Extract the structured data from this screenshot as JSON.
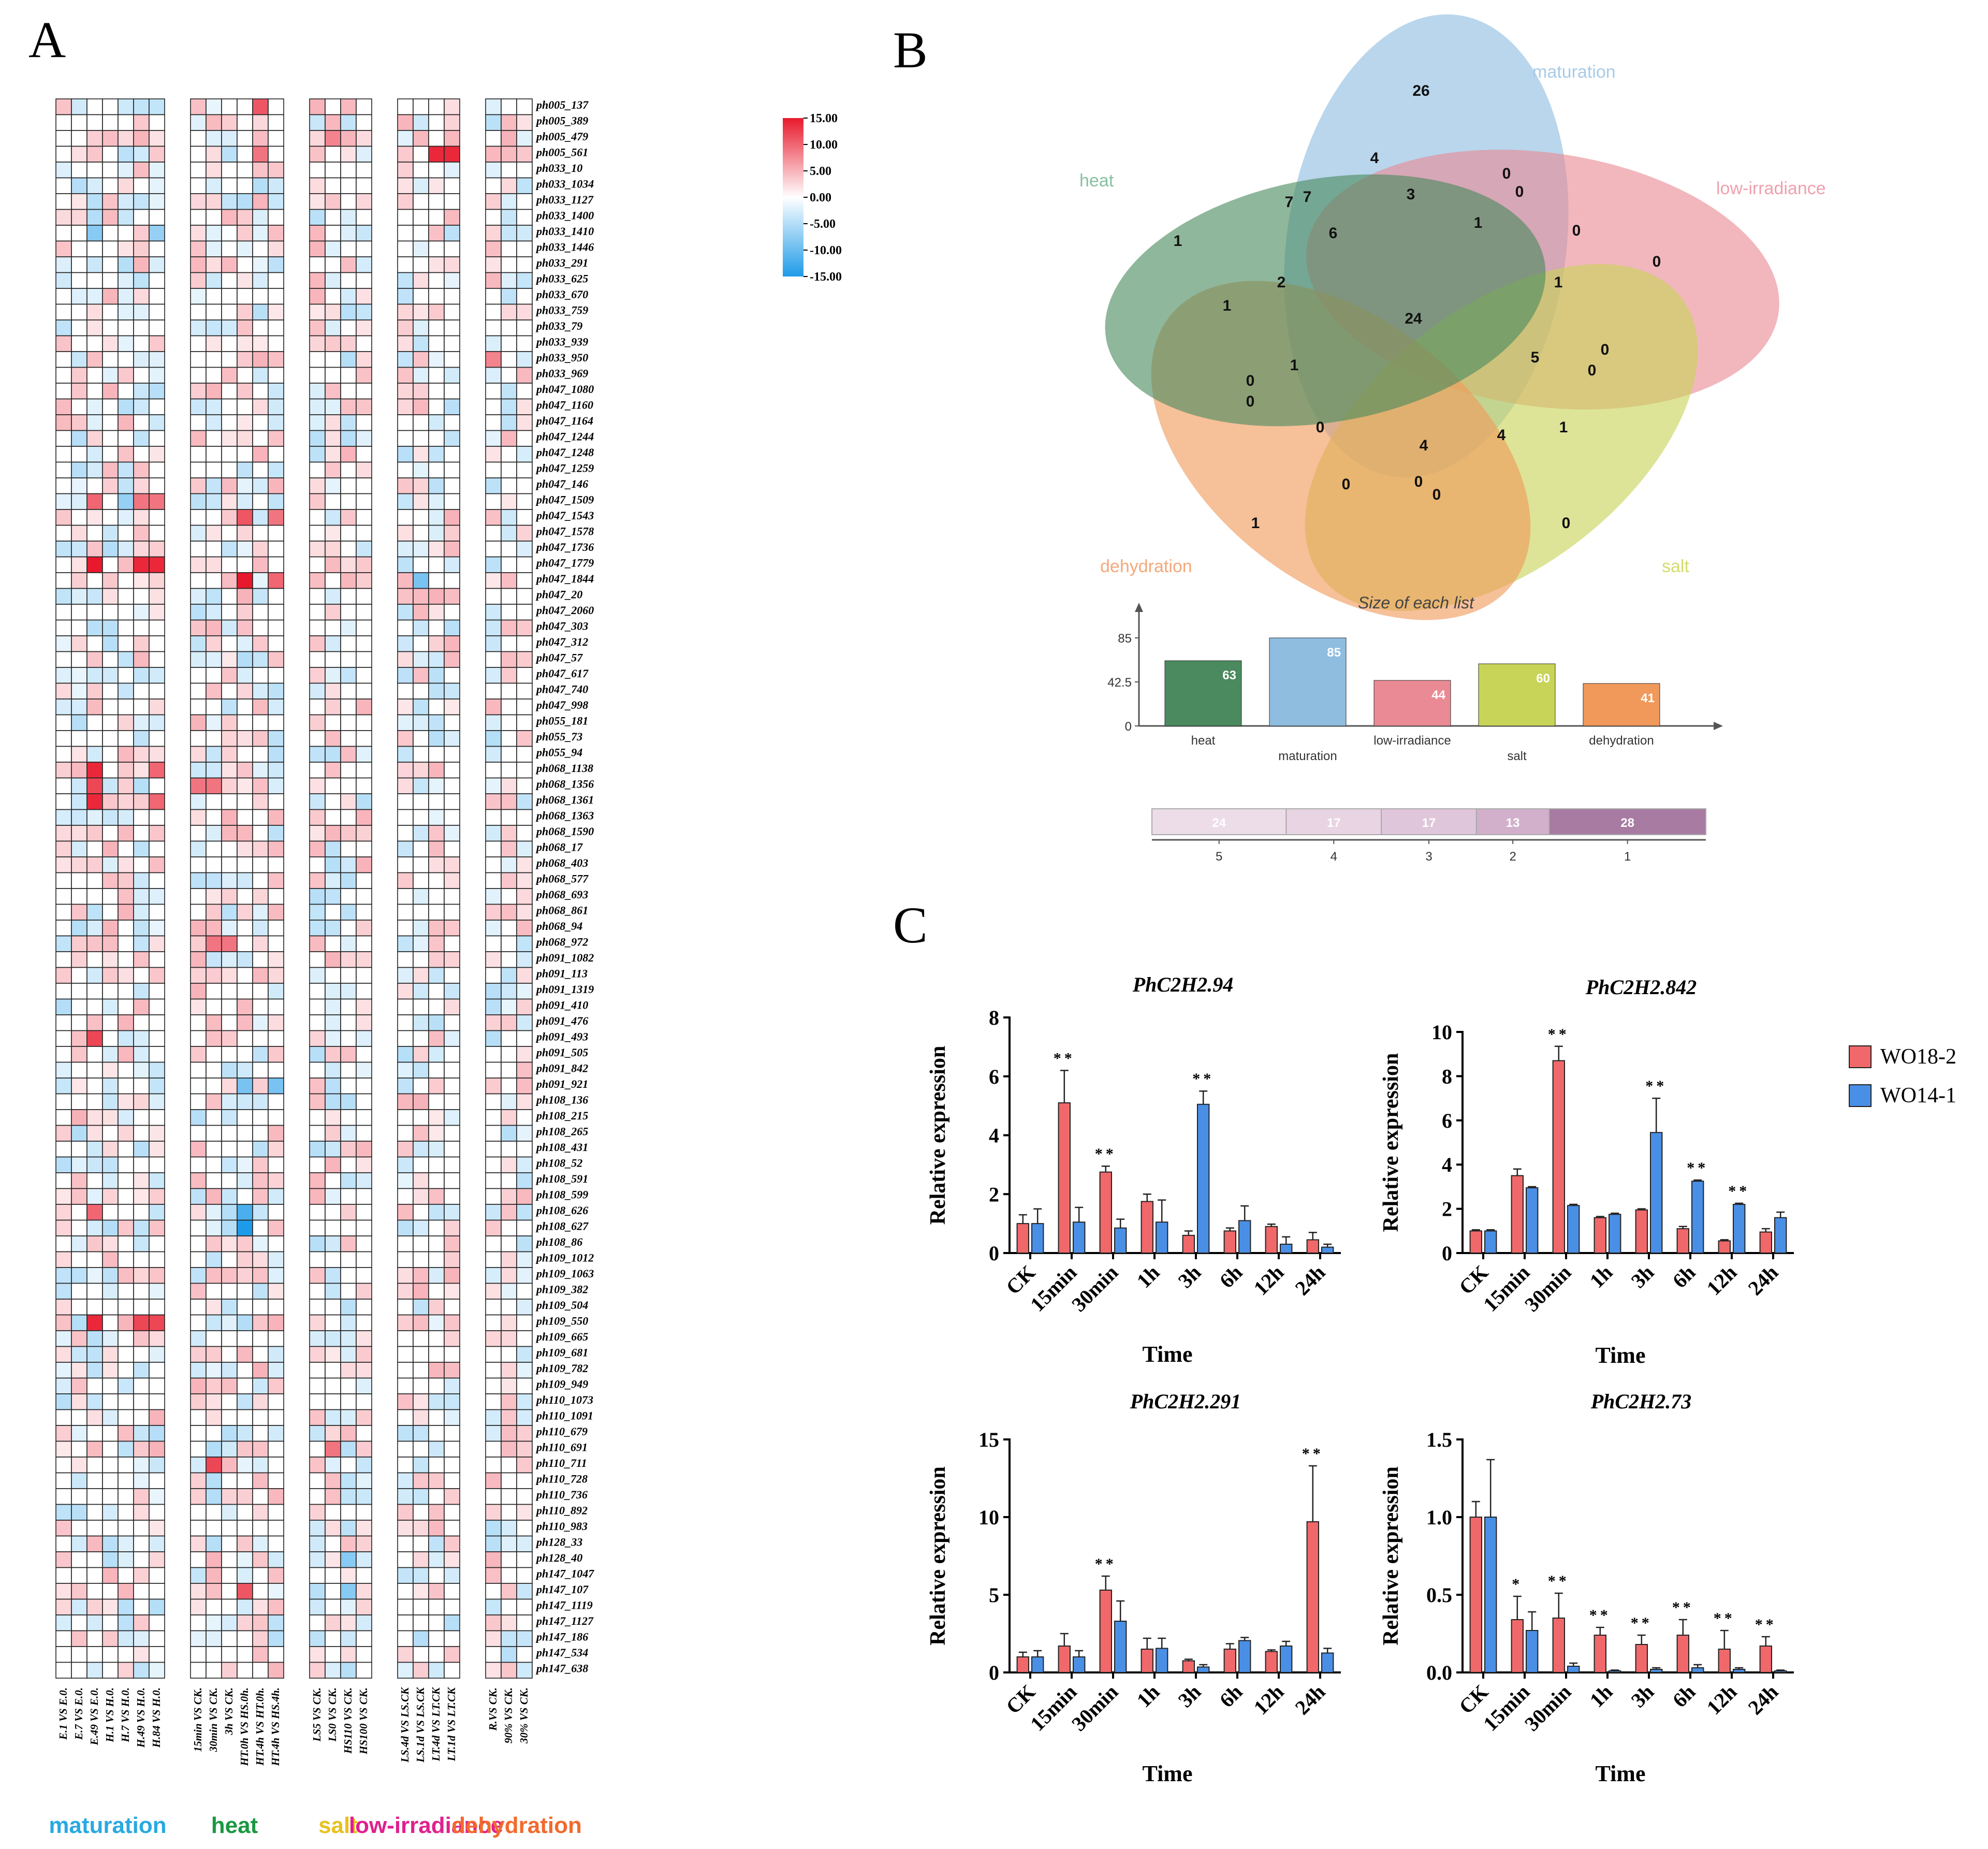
{
  "panels": {
    "a": "A",
    "b": "B",
    "c": "C"
  },
  "heatmap": {
    "genes": [
      "ph005_137",
      "ph005_389",
      "ph005_479",
      "ph005_561",
      "ph033_10",
      "ph033_1034",
      "ph033_1127",
      "ph033_1400",
      "ph033_1410",
      "ph033_1446",
      "ph033_291",
      "ph033_625",
      "ph033_670",
      "ph033_759",
      "ph033_79",
      "ph033_939",
      "ph033_950",
      "ph033_969",
      "ph047_1080",
      "ph047_1160",
      "ph047_1164",
      "ph047_1244",
      "ph047_1248",
      "ph047_1259",
      "ph047_146",
      "ph047_1509",
      "ph047_1543",
      "ph047_1578",
      "ph047_1736",
      "ph047_1779",
      "ph047_1844",
      "ph047_20",
      "ph047_2060",
      "ph047_303",
      "ph047_312",
      "ph047_57",
      "ph047_617",
      "ph047_740",
      "ph047_998",
      "ph055_181",
      "ph055_73",
      "ph055_94",
      "ph068_1138",
      "ph068_1356",
      "ph068_1361",
      "ph068_1363",
      "ph068_1590",
      "ph068_17",
      "ph068_403",
      "ph068_577",
      "ph068_693",
      "ph068_861",
      "ph068_94",
      "ph068_972",
      "ph091_1082",
      "ph091_113",
      "ph091_1319",
      "ph091_410",
      "ph091_476",
      "ph091_493",
      "ph091_505",
      "ph091_842",
      "ph091_921",
      "ph108_136",
      "ph108_215",
      "ph108_265",
      "ph108_431",
      "ph108_52",
      "ph108_591",
      "ph108_599",
      "ph108_626",
      "ph108_627",
      "ph108_86",
      "ph109_1012",
      "ph109_1063",
      "ph109_382",
      "ph109_504",
      "ph109_550",
      "ph109_665",
      "ph109_681",
      "ph109_782",
      "ph109_949",
      "ph110_1073",
      "ph110_1091",
      "ph110_679",
      "ph110_691",
      "ph110_711",
      "ph110_728",
      "ph110_736",
      "ph110_892",
      "ph110_983",
      "ph128_33",
      "ph128_40",
      "ph147_1047",
      "ph147_107",
      "ph147_1119",
      "ph147_1127",
      "ph147_186",
      "ph147_534",
      "ph147_638"
    ],
    "groups": [
      {
        "name": "maturation",
        "color": "#29a9e1",
        "columns": [
          "E.1 VS E.0.",
          "E.7 VS E.0.",
          "E.49 VS E.0.",
          "H.1 VS H.0.",
          "H.7 VS H.0.",
          "H.49 VS H.0.",
          "H.84 VS H.0."
        ]
      },
      {
        "name": "heat",
        "color": "#1a9841",
        "columns": [
          "15min VS CK.",
          "30min VS CK.",
          "3h VS CK.",
          "HT.0h VS HS.0h.",
          "HT.4h VS HT.0h.",
          "HT.4h VS HS.4h."
        ]
      },
      {
        "name": "salt",
        "color": "#e8c120",
        "columns": [
          "LS5 VS CK.",
          "LS0 VS CK.",
          "HS110 VS CK.",
          "HS100 VS CK."
        ]
      },
      {
        "name": "low-irradiance",
        "color": "#e0208c",
        "columns": [
          "LS.4d VS LS.CK",
          "LS.1d VS LS.CK",
          "LT.4d VS LT.CK",
          "LT.1d VS LT.CK"
        ]
      },
      {
        "name": "dehydration",
        "color": "#f26a2c",
        "columns": [
          "R.VS CK.",
          "90% VS CK.",
          "30% VS CK."
        ]
      }
    ],
    "strong_cells": [
      {
        "gene": "ph005_137",
        "column": "HT.4h VS HT.0h.",
        "value": 11
      },
      {
        "gene": "ph005_479",
        "column": "LS0 VS CK.",
        "value": 8
      },
      {
        "gene": "ph005_561",
        "column": "LT.4d VS LT.CK",
        "value": 14
      },
      {
        "gene": "ph005_561",
        "column": "LT.1d VS LT.CK",
        "value": 14
      },
      {
        "gene": "ph005_561",
        "column": "HT.4h VS HT.0h.",
        "value": 9
      },
      {
        "gene": "ph033_1410",
        "column": "E.49 VS E.0.",
        "value": -8
      },
      {
        "gene": "ph033_1410",
        "column": "H.84 VS H.0.",
        "value": -7
      },
      {
        "gene": "ph033_950",
        "column": "R.VS CK.",
        "value": 8
      },
      {
        "gene": "ph047_1509",
        "column": "E.49 VS E.0.",
        "value": 10
      },
      {
        "gene": "ph047_1509",
        "column": "H.49 VS H.0.",
        "value": 9
      },
      {
        "gene": "ph047_1509",
        "column": "H.84 VS H.0.",
        "value": 9
      },
      {
        "gene": "ph047_1509",
        "column": "H.7 VS H.0.",
        "value": -7
      },
      {
        "gene": "ph047_1543",
        "column": "HT.0h VS HS.0h.",
        "value": 11
      },
      {
        "gene": "ph047_1543",
        "column": "HT.4h VS HS.4h.",
        "value": 9
      },
      {
        "gene": "ph047_1779",
        "column": "E.49 VS E.0.",
        "value": 15
      },
      {
        "gene": "ph047_1779",
        "column": "H.49 VS H.0.",
        "value": 14
      },
      {
        "gene": "ph047_1779",
        "column": "H.84 VS H.0.",
        "value": 14
      },
      {
        "gene": "ph047_1844",
        "column": "HT.0h VS HS.0h.",
        "value": 15
      },
      {
        "gene": "ph047_1844",
        "column": "HT.4h VS HS.4h.",
        "value": 10
      },
      {
        "gene": "ph047_1844",
        "column": "LS.1d VS LS.CK",
        "value": -9
      },
      {
        "gene": "ph068_1138",
        "column": "E.49 VS E.0.",
        "value": 14
      },
      {
        "gene": "ph068_1138",
        "column": "H.84 VS H.0.",
        "value": 10
      },
      {
        "gene": "ph068_1356",
        "column": "E.49 VS E.0.",
        "value": 12
      },
      {
        "gene": "ph068_1356",
        "column": "15min VS CK.",
        "value": 9
      },
      {
        "gene": "ph068_1356",
        "column": "30min VS CK.",
        "value": 9
      },
      {
        "gene": "ph068_1361",
        "column": "E.49 VS E.0.",
        "value": 14
      },
      {
        "gene": "ph068_1361",
        "column": "H.84 VS H.0.",
        "value": 10
      },
      {
        "gene": "ph068_972",
        "column": "30min VS CK.",
        "value": 9
      },
      {
        "gene": "ph068_972",
        "column": "3h VS CK.",
        "value": 9
      },
      {
        "gene": "ph091_493",
        "column": "E.49 VS E.0.",
        "value": 12
      },
      {
        "gene": "ph091_921",
        "column": "HT.0h VS HS.0h.",
        "value": -9
      },
      {
        "gene": "ph091_921",
        "column": "HT.4h VS HS.4h.",
        "value": -9
      },
      {
        "gene": "ph108_626",
        "column": "E.49 VS E.0.",
        "value": 10
      },
      {
        "gene": "ph108_626",
        "column": "HT.0h VS HS.0h.",
        "value": -12
      },
      {
        "gene": "ph108_627",
        "column": "HT.0h VS HS.0h.",
        "value": -15
      },
      {
        "gene": "ph109_550",
        "column": "E.49 VS E.0.",
        "value": 14
      },
      {
        "gene": "ph109_550",
        "column": "H.49 VS H.0.",
        "value": 12
      },
      {
        "gene": "ph109_550",
        "column": "H.84 VS H.0.",
        "value": 12
      },
      {
        "gene": "ph110_691",
        "column": "LS0 VS CK.",
        "value": 9
      },
      {
        "gene": "ph110_711",
        "column": "30min VS CK.",
        "value": 12
      },
      {
        "gene": "ph147_107",
        "column": "HT.0h VS HS.0h.",
        "value": 11
      },
      {
        "gene": "ph147_107",
        "column": "HS110 VS CK.",
        "value": -8
      },
      {
        "gene": "ph128_40",
        "column": "HS110 VS CK.",
        "value": -8
      }
    ]
  },
  "colorbar": {
    "ticks": [
      "15.00",
      "10.00",
      "5.00",
      "0.00",
      "-5.00",
      "-10.00",
      "-15.00"
    ],
    "colors": {
      "high": "#e8192c",
      "mid": "#ffffff",
      "low": "#1e9be8"
    }
  },
  "venn": {
    "sets": [
      {
        "name": "maturation",
        "color": "#8ebde0",
        "label_color": "#a8cbe8"
      },
      {
        "name": "low-irradiance",
        "color": "#e98a94",
        "label_color": "#f0a0ae"
      },
      {
        "name": "salt",
        "color": "#c8d457",
        "label_color": "#d4dc6c"
      },
      {
        "name": "dehydration",
        "color": "#f0995a",
        "label_color": "#f4a87a"
      },
      {
        "name": "heat",
        "color": "#4a8a5e",
        "label_color": "#86c0a0"
      }
    ],
    "region_counts": [
      "26",
      "4",
      "7",
      "7",
      "6",
      "3",
      "0",
      "0",
      "0",
      "1",
      "0",
      "1",
      "1",
      "2",
      "24",
      "1",
      "1",
      "5",
      "0",
      "0",
      "0",
      "0",
      "1",
      "0",
      "4",
      "4",
      "0",
      "0",
      "0",
      "1",
      "0"
    ],
    "size_title": "Size of each list",
    "size_axis_ticks": [
      "85",
      "42.5",
      "0"
    ],
    "sizes": [
      {
        "name": "heat",
        "value": 63,
        "color": "#4a8a5e"
      },
      {
        "name": "maturation",
        "value": 85,
        "color": "#8ebde0"
      },
      {
        "name": "low-irradiance",
        "value": 44,
        "color": "#e98a94"
      },
      {
        "name": "salt",
        "value": 60,
        "color": "#c8d457"
      },
      {
        "name": "dehydration",
        "value": 41,
        "color": "#f0995a"
      }
    ],
    "overlap_bar": [
      {
        "count": "24",
        "sets": "5",
        "value": 24
      },
      {
        "count": "17",
        "sets": "4",
        "value": 17
      },
      {
        "count": "17",
        "sets": "3",
        "value": 17
      },
      {
        "count": "13",
        "sets": "2",
        "value": 13
      },
      {
        "count": "28",
        "sets": "1",
        "value": 28
      }
    ]
  },
  "chart_data": [
    {
      "type": "bar",
      "title": "PhC2H2.94",
      "xlabel": "Time",
      "ylabel": "Relative expression",
      "categories": [
        "CK",
        "15min",
        "30min",
        "1h",
        "3h",
        "6h",
        "12h",
        "24h"
      ],
      "ylim": [
        0,
        8
      ],
      "yticks": [
        "0",
        "2",
        "4",
        "6",
        "8"
      ],
      "series": [
        {
          "name": "WO18-2",
          "values": [
            1.0,
            5.1,
            2.75,
            1.75,
            0.6,
            0.75,
            0.9,
            0.45
          ],
          "errors": [
            0.3,
            1.1,
            0.2,
            0.25,
            0.15,
            0.1,
            0.08,
            0.25
          ]
        },
        {
          "name": "WO14-1",
          "values": [
            1.0,
            1.05,
            0.85,
            1.05,
            5.05,
            1.1,
            0.3,
            0.2
          ],
          "errors": [
            0.5,
            0.5,
            0.3,
            0.75,
            0.45,
            0.5,
            0.25,
            0.1
          ]
        }
      ],
      "significance": [
        {
          "category": "15min",
          "series": "WO18-2",
          "mark": "**"
        },
        {
          "category": "30min",
          "series": "WO18-2",
          "mark": "**"
        },
        {
          "category": "3h",
          "series": "WO14-1",
          "mark": "**"
        }
      ]
    },
    {
      "type": "bar",
      "title": "PhC2H2.842",
      "xlabel": "Time",
      "ylabel": "Relative expression",
      "categories": [
        "CK",
        "15min",
        "30min",
        "1h",
        "3h",
        "6h",
        "12h",
        "24h"
      ],
      "ylim": [
        0,
        10
      ],
      "yticks": [
        "0",
        "2",
        "4",
        "6",
        "8",
        "10"
      ],
      "series": [
        {
          "name": "WO18-2",
          "values": [
            1.0,
            3.5,
            8.7,
            1.6,
            1.95,
            1.1,
            0.55,
            0.95
          ],
          "errors": [
            0.05,
            0.3,
            0.65,
            0.05,
            0.05,
            0.1,
            0.05,
            0.15
          ]
        },
        {
          "name": "WO14-1",
          "values": [
            1.0,
            2.95,
            2.15,
            1.75,
            5.45,
            3.25,
            2.2,
            1.6
          ],
          "errors": [
            0.05,
            0.05,
            0.05,
            0.05,
            1.55,
            0.05,
            0.05,
            0.25
          ]
        }
      ],
      "significance": [
        {
          "category": "30min",
          "series": "WO18-2",
          "mark": "**"
        },
        {
          "category": "3h",
          "series": "WO14-1",
          "mark": "**"
        },
        {
          "category": "6h",
          "series": "WO14-1",
          "mark": "**"
        },
        {
          "category": "12h",
          "series": "WO14-1",
          "mark": "**"
        }
      ]
    },
    {
      "type": "bar",
      "title": "PhC2H2.291",
      "xlabel": "Time",
      "ylabel": "Relative expression",
      "categories": [
        "CK",
        "15min",
        "30min",
        "1h",
        "3h",
        "6h",
        "12h",
        "24h"
      ],
      "ylim": [
        0,
        15
      ],
      "yticks": [
        "0",
        "5",
        "10",
        "15"
      ],
      "series": [
        {
          "name": "WO18-2",
          "values": [
            1.0,
            1.7,
            5.3,
            1.5,
            0.75,
            1.5,
            1.35,
            9.7
          ],
          "errors": [
            0.3,
            0.8,
            0.9,
            0.7,
            0.1,
            0.35,
            0.1,
            3.6
          ]
        },
        {
          "name": "WO14-1",
          "values": [
            1.0,
            1.0,
            3.3,
            1.55,
            0.35,
            2.05,
            1.7,
            1.25
          ],
          "errors": [
            0.4,
            0.4,
            1.3,
            0.65,
            0.15,
            0.2,
            0.3,
            0.3
          ]
        }
      ],
      "significance": [
        {
          "category": "30min",
          "series": "WO18-2",
          "mark": "**"
        },
        {
          "category": "24h",
          "series": "WO18-2",
          "mark": "**"
        }
      ]
    },
    {
      "type": "bar",
      "title": "PhC2H2.73",
      "xlabel": "Time",
      "ylabel": "Relative expression",
      "categories": [
        "CK",
        "15min",
        "30min",
        "1h",
        "3h",
        "6h",
        "12h",
        "24h"
      ],
      "ylim": [
        0,
        1.5
      ],
      "yticks": [
        "0.0",
        "0.5",
        "1.0",
        "1.5"
      ],
      "series": [
        {
          "name": "WO18-2",
          "values": [
            1.0,
            0.34,
            0.35,
            0.24,
            0.18,
            0.24,
            0.15,
            0.17
          ],
          "errors": [
            0.1,
            0.15,
            0.16,
            0.05,
            0.06,
            0.1,
            0.12,
            0.06
          ]
        },
        {
          "name": "WO14-1",
          "values": [
            1.0,
            0.27,
            0.04,
            0.01,
            0.02,
            0.03,
            0.02,
            0.01
          ],
          "errors": [
            0.37,
            0.12,
            0.02,
            0.005,
            0.01,
            0.02,
            0.01,
            0.005
          ]
        }
      ],
      "significance": [
        {
          "category": "15min",
          "series": "WO18-2",
          "mark": "*"
        },
        {
          "category": "30min",
          "series": "WO18-2",
          "mark": "**"
        },
        {
          "category": "1h",
          "series": "WO18-2",
          "mark": "**"
        },
        {
          "category": "3h",
          "series": "WO18-2",
          "mark": "**"
        },
        {
          "category": "6h",
          "series": "WO18-2",
          "mark": "**"
        },
        {
          "category": "12h",
          "series": "WO18-2",
          "mark": "**"
        },
        {
          "category": "24h",
          "series": "WO18-2",
          "mark": "**"
        }
      ]
    }
  ],
  "legend": [
    {
      "name": "WO18-2",
      "color": "#f0686a"
    },
    {
      "name": "WO14-1",
      "color": "#4a8fe6"
    }
  ]
}
